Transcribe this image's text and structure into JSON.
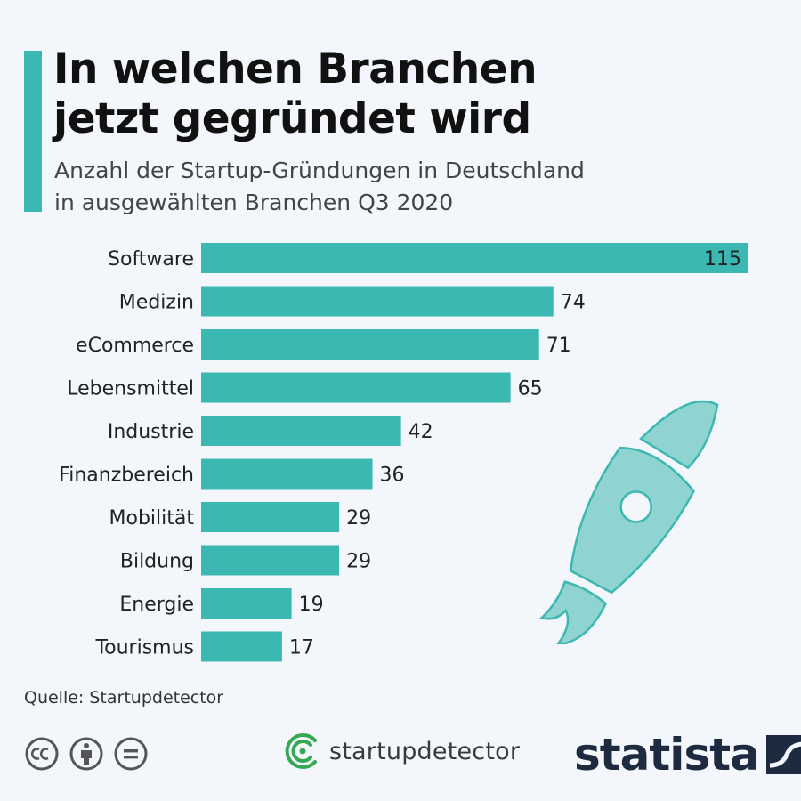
{
  "header": {
    "title_line1": "In welchen Branchen",
    "title_line2": "jetzt gegründet wird",
    "subtitle_line1": "Anzahl der Startup-Gründungen in Deutschland",
    "subtitle_line2": "in ausgewählten Branchen Q3 2020"
  },
  "chart_data": {
    "type": "bar",
    "orientation": "horizontal",
    "categories": [
      "Software",
      "Medizin",
      "eCommerce",
      "Lebensmittel",
      "Industrie",
      "Finanzbereich",
      "Mobilität",
      "Bildung",
      "Energie",
      "Tourismus"
    ],
    "values": [
      115,
      74,
      71,
      65,
      42,
      36,
      29,
      29,
      19,
      17
    ],
    "title": "In welchen Branchen jetzt gegründet wird",
    "subtitle": "Anzahl der Startup-Gründungen in Deutschland in ausgewählten Branchen Q3 2020",
    "xlim": [
      0,
      115
    ],
    "grid": false,
    "data_labels": true,
    "bar_color": "#3bb8b1"
  },
  "footer": {
    "source": "Quelle: Startupdetector",
    "partner_name": "startupdetector",
    "brand_name": "statista",
    "license_icons": [
      "cc-icon",
      "attribution-icon",
      "no-derivatives-icon"
    ]
  },
  "colors": {
    "accent": "#3bb8b1",
    "rocket": "#8fd4d0",
    "rocket_outline": "#3bb8b1",
    "brand": "#1e2a3f",
    "partner_green": "#36a853"
  }
}
